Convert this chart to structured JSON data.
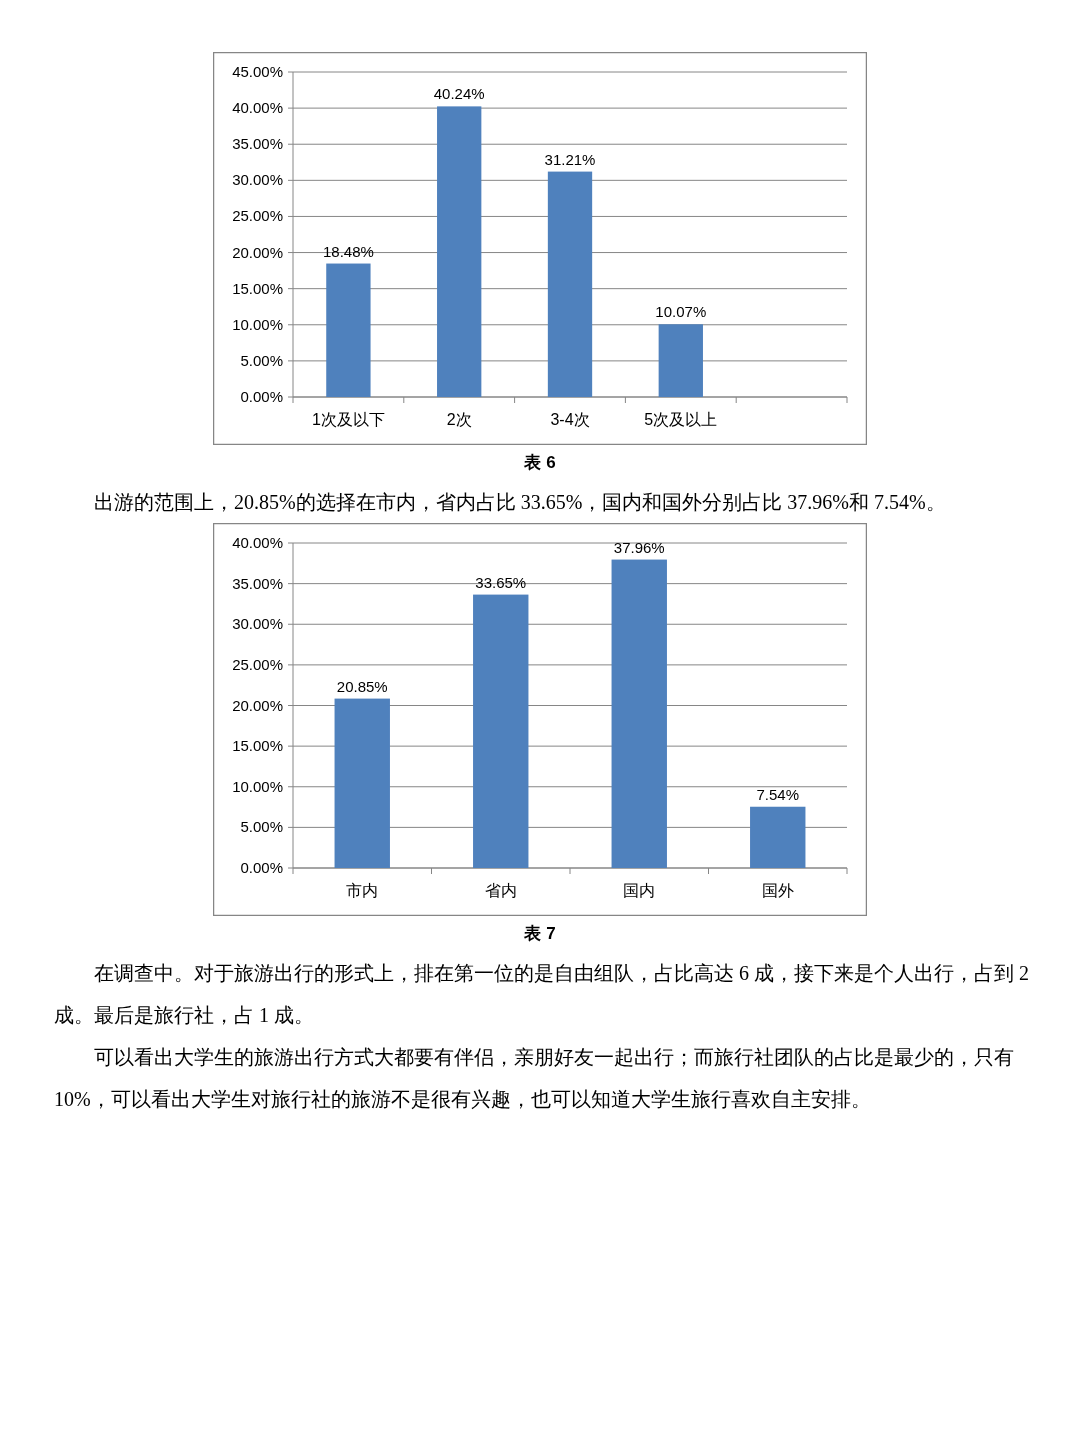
{
  "chart_data": [
    {
      "type": "bar",
      "categories": [
        "1次及以下",
        "2次",
        "3-4次",
        "5次及以上",
        null
      ],
      "values": [
        18.48,
        40.24,
        31.21,
        10.07,
        null
      ],
      "value_labels": [
        "18.48%",
        "40.24%",
        "31.21%",
        "10.07%",
        null
      ],
      "color": "#4f81bd",
      "ylim": [
        0,
        45
      ],
      "yticks": [
        {
          "value": 0,
          "label": "0.00%"
        },
        {
          "value": 5,
          "label": "5.00%"
        },
        {
          "value": 10,
          "label": "10.00%"
        },
        {
          "value": 15,
          "label": "15.00%"
        },
        {
          "value": 20,
          "label": "20.00%"
        },
        {
          "value": 25,
          "label": "25.00%"
        },
        {
          "value": 30,
          "label": "30.00%"
        },
        {
          "value": 35,
          "label": "35.00%"
        },
        {
          "value": 40,
          "label": "40.00%"
        },
        {
          "value": 45,
          "label": "45.00%"
        }
      ],
      "grid": "y",
      "annotations": [
        "表 6",
        "出游的范围上，20.85%的选择在市内，省内占比 33.65%，国内和国外分别占比 37.96%和 7.54%。"
      ]
    },
    {
      "type": "bar",
      "categories": [
        "市内",
        "省内",
        "国内",
        "国外"
      ],
      "values": [
        20.85,
        33.65,
        37.96,
        7.54
      ],
      "value_labels": [
        "20.85%",
        "33.65%",
        "37.96%",
        "7.54%"
      ],
      "color": "#4f81bd",
      "ylim": [
        0,
        40
      ],
      "yticks": [
        {
          "value": 0,
          "label": "0.00%"
        },
        {
          "value": 5,
          "label": "5.00%"
        },
        {
          "value": 10,
          "label": "10.00%"
        },
        {
          "value": 15,
          "label": "15.00%"
        },
        {
          "value": 20,
          "label": "20.00%"
        },
        {
          "value": 25,
          "label": "25.00%"
        },
        {
          "value": 30,
          "label": "30.00%"
        },
        {
          "value": 35,
          "label": "35.00%"
        },
        {
          "value": 40,
          "label": "40.00%"
        }
      ],
      "grid": "y",
      "annotations": [
        "表 7",
        "在调查中。对于旅游出行的形式上，排在第一位的是自由组队，占比高达 6 成，接下来是个人出行，占到 2 成。最后是旅行社，占 1 成。",
        "可以看出大学生的旅游出行方式大都要有伴侣，亲朋好友一起出行；而旅行社团队的占比是最少的，只有 10%，可以看出大学生对旅行社的旅游不是很有兴趣，也可以知道大学生旅行喜欢自主安排。"
      ]
    }
  ]
}
